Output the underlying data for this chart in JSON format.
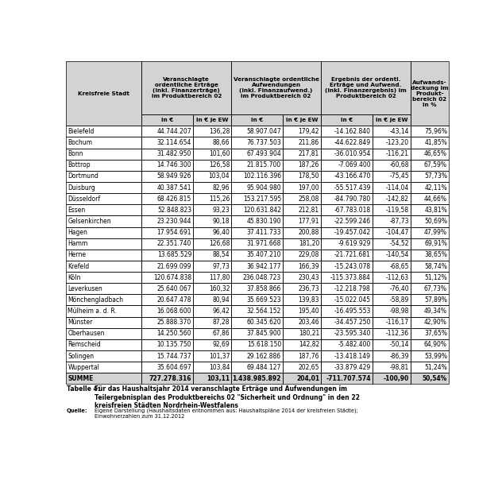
{
  "cities": [
    "Bielefeld",
    "Bochum",
    "Bonn",
    "Bottrop",
    "Dortmund",
    "Duisburg",
    "Düsseldorf",
    "Essen",
    "Gelsenkirchen",
    "Hagen",
    "Hamm",
    "Herne",
    "Krefeld",
    "Köln",
    "Leverkusen",
    "Mönchengladbach",
    "Mülheim a. d. R.",
    "Münster",
    "Oberhausen",
    "Remscheid",
    "Solingen",
    "Wuppertal",
    "SUMME"
  ],
  "col1": [
    "44.744.207",
    "32.114.654",
    "31.482.950",
    "14.746.300",
    "58.949.926",
    "40.387.541",
    "68.426.815",
    "52.848.823",
    "23.230.944",
    "17.954.691",
    "22.351.740",
    "13.685.529",
    "21.699.099",
    "120.674.838",
    "25.640.067",
    "20.647.478",
    "16.068.600",
    "25.888.370",
    "14.250.560",
    "10.135.750",
    "15.744.737",
    "35.604.697",
    "727.278.316"
  ],
  "col2": [
    "136,28",
    "88,66",
    "101,60",
    "126,58",
    "103,04",
    "82,96",
    "115,26",
    "93,23",
    "90,18",
    "96,40",
    "126,68",
    "88,54",
    "97,73",
    "117,80",
    "160,32",
    "80,94",
    "96,42",
    "87,28",
    "67,86",
    "92,69",
    "101,37",
    "103,84",
    "103,11"
  ],
  "col3": [
    "58.907.047",
    "76.737.503",
    "67.493.904",
    "21.815.700",
    "102.116.396",
    "95.904.980",
    "153.217.595",
    "120.631.842",
    "45.830.190",
    "37.411.733",
    "31.971.668",
    "35.407.210",
    "36.942.177",
    "236.048.723",
    "37.858.866",
    "35.669.523",
    "32.564.152",
    "60.345.620",
    "37.845.900",
    "15.618.150",
    "29.162.886",
    "69.484.127",
    "1.438.985.892"
  ],
  "col4": [
    "179,42",
    "211,86",
    "217,81",
    "187,26",
    "178,50",
    "197,00",
    "258,08",
    "212,81",
    "177,91",
    "200,88",
    "181,20",
    "229,08",
    "166,39",
    "230,43",
    "236,73",
    "139,83",
    "195,40",
    "203,46",
    "180,21",
    "142,82",
    "187,76",
    "202,65",
    "204,01"
  ],
  "col5": [
    "-14.162.840",
    "-44.622.849",
    "-36.010.954",
    "-7.069.400",
    "-43.166.470",
    "-55.517.439",
    "-84.790.780",
    "-67.783.018",
    "-22.599.246",
    "-19.457.042",
    "-9.619.929",
    "-21.721.681",
    "-15.243.078",
    "-115.373.884",
    "-12.218.798",
    "-15.022.045",
    "-16.495.553",
    "-34.457.250",
    "-23.595.340",
    "-5.482.400",
    "-13.418.149",
    "-33.879.429",
    "-711.707.574"
  ],
  "col6": [
    "-43,14",
    "-123,20",
    "-116,21",
    "-60,68",
    "-75,45",
    "-114,04",
    "-142,82",
    "-119,58",
    "-87,73",
    "-104,47",
    "-54,52",
    "-140,54",
    "-68,65",
    "-112,63",
    "-76,40",
    "-58,89",
    "-98,98",
    "-116,17",
    "-112,36",
    "-50,14",
    "-86,39",
    "-98,81",
    "-100,90"
  ],
  "col7": [
    "75,96%",
    "41,85%",
    "46,65%",
    "67,59%",
    "57,73%",
    "42,11%",
    "44,66%",
    "43,81%",
    "50,69%",
    "47,99%",
    "69,91%",
    "38,65%",
    "58,74%",
    "51,12%",
    "67,73%",
    "57,89%",
    "49,34%",
    "42,90%",
    "37,65%",
    "64,90%",
    "53,99%",
    "51,24%",
    "50,54%"
  ],
  "header_bg": "#d3d3d3",
  "data_bg": "#ffffff",
  "caption_bold": "Tabelle 4:",
  "caption_text": "Für das Haushaltsjahr 2014 veranschlagte Erträge und Aufwendungen im\nTeilergebnisplan des Produktbereichs 02 \"Sicherheit und Ordnung\" in den 22\nkreisfreien Städten Nordrhein-Westfalens",
  "source_bold": "Quelle:",
  "source_text": "Eigene Darstellung (Haushaltsdaten entnommen aus: Haushaltspläne 2014 der kreisfreien Städte);\nEinwohnerzahlen zum 31.12.2012",
  "col_widths_rel": [
    1.55,
    1.05,
    0.78,
    1.05,
    0.78,
    1.05,
    0.78,
    0.78
  ],
  "fs_header": 5.2,
  "fs_subheader": 5.2,
  "fs_data": 5.5,
  "fs_caption": 5.5,
  "fs_source": 4.8
}
